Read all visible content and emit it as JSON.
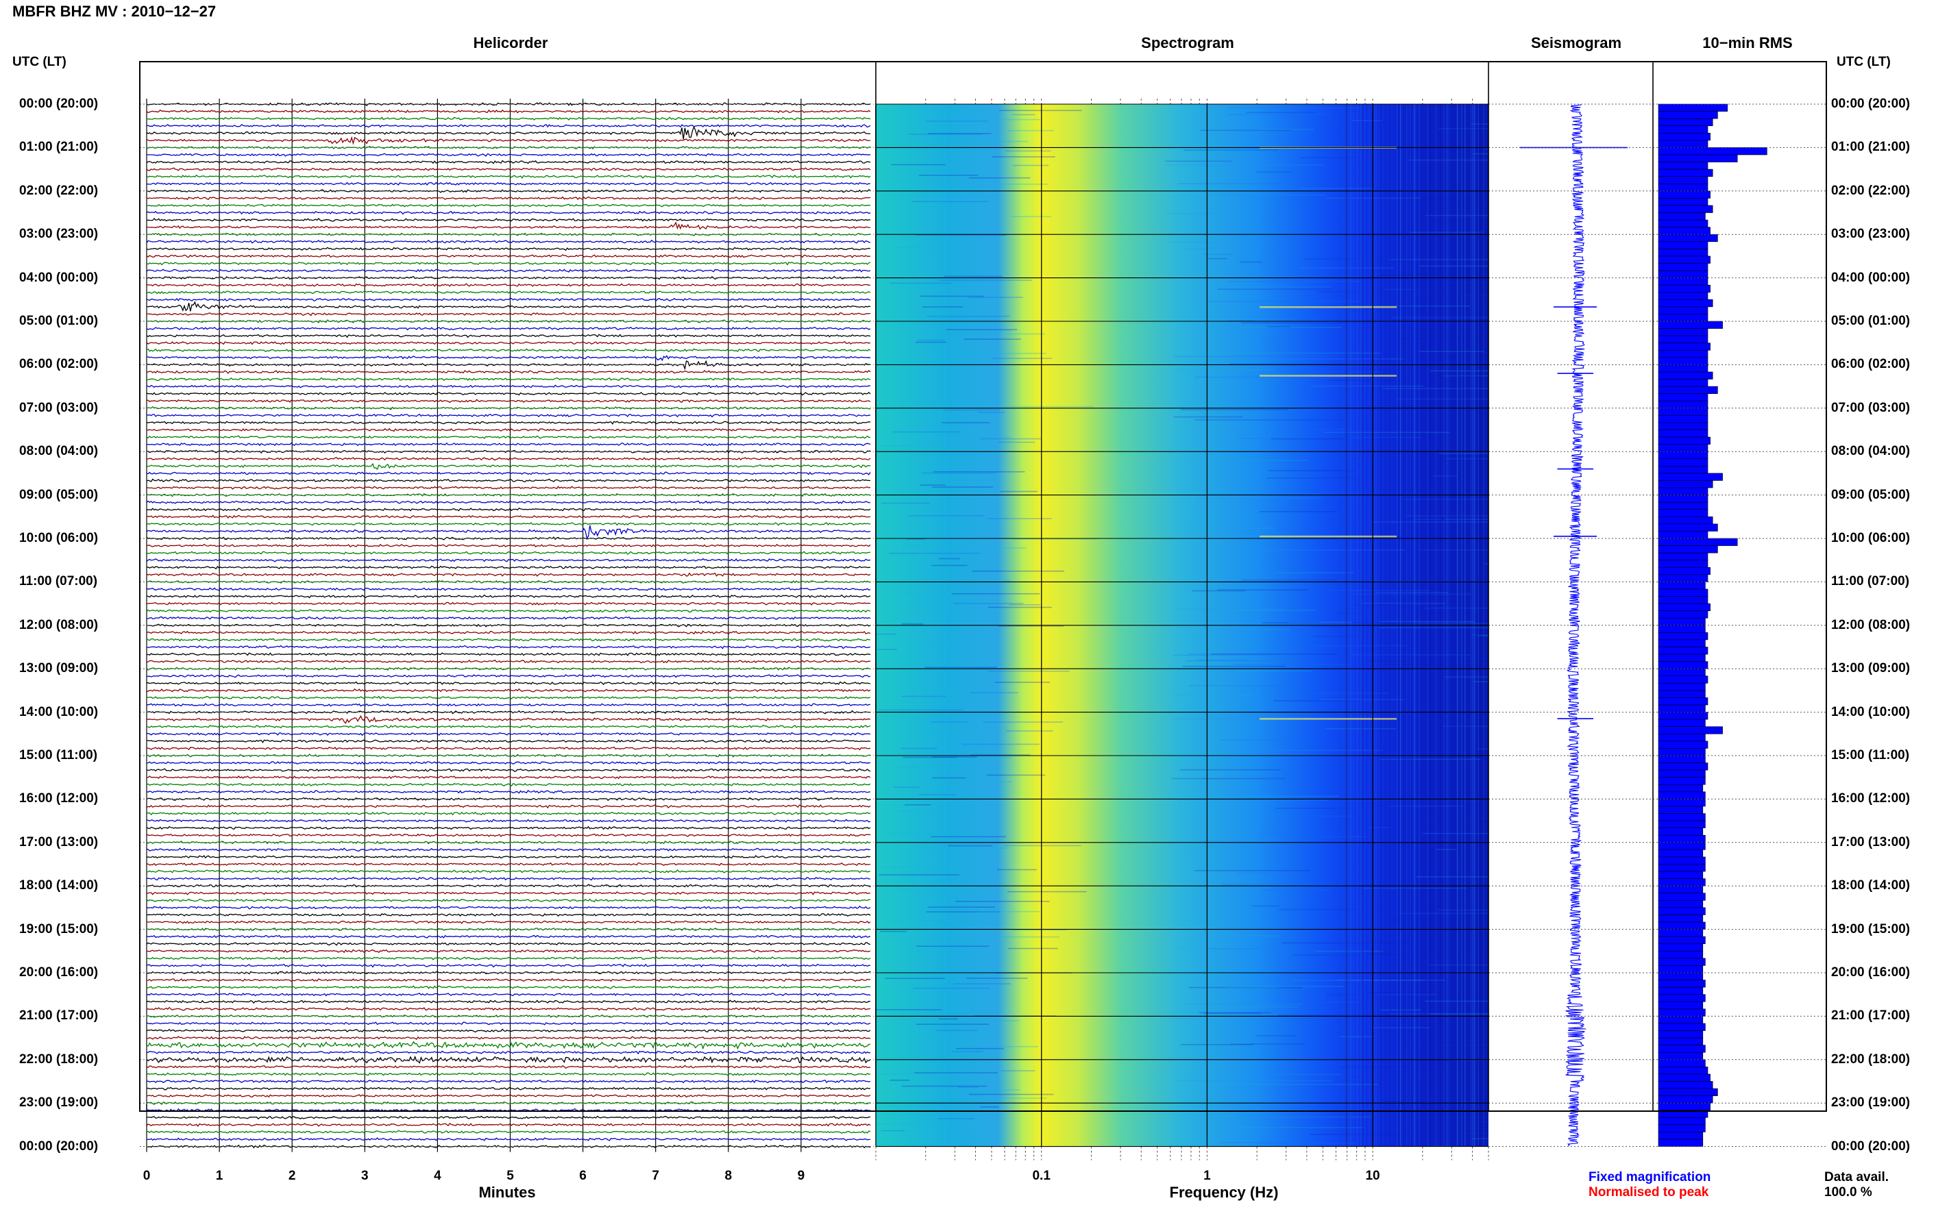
{
  "station_title": "MBFR BHZ MV : 2010−12−27",
  "axis_left_label": "UTC (LT)",
  "axis_right_label": "UTC (LT)",
  "panels": {
    "helicorder": "Helicorder",
    "spectrogram": "Spectrogram",
    "seismogram": "Seismogram",
    "rms": "10−min RMS"
  },
  "x_axes": {
    "helicorder_label": "Minutes",
    "spectrogram_label": "Frequency (Hz)"
  },
  "legend": {
    "fixed": "Fixed magnification",
    "normalised": "Normalised to peak",
    "fixed_color": "#0000ff",
    "normalised_color": "#ff0000"
  },
  "data_availability": {
    "label": "Data avail.",
    "value": "100.0 %"
  },
  "chart_data": [
    {
      "type": "line",
      "title": "Helicorder",
      "xlabel": "Minutes",
      "x_ticks": [
        "0",
        "1",
        "2",
        "3",
        "4",
        "5",
        "6",
        "7",
        "8",
        "9"
      ],
      "xlim": [
        0,
        10
      ],
      "y_ticks": [
        "00:00 (20:00)",
        "01:00 (21:00)",
        "02:00 (22:00)",
        "03:00 (23:00)",
        "04:00 (00:00)",
        "05:00 (01:00)",
        "06:00 (02:00)",
        "07:00 (03:00)",
        "08:00 (04:00)",
        "09:00 (05:00)",
        "10:00 (06:00)",
        "11:00 (07:00)",
        "12:00 (08:00)",
        "13:00 (09:00)",
        "14:00 (10:00)",
        "15:00 (11:00)",
        "16:00 (12:00)",
        "17:00 (13:00)",
        "18:00 (14:00)",
        "19:00 (15:00)",
        "20:00 (16:00)",
        "21:00 (17:00)",
        "22:00 (18:00)",
        "23:00 (19:00)",
        "00:00 (20:00)"
      ],
      "trace_colors": [
        "#000000",
        "#8b0000",
        "#008000",
        "#0000cd"
      ],
      "events": [
        {
          "hour": 0.67,
          "minute": 7.3,
          "duration_min": 1.5,
          "amplitude": 3.0
        },
        {
          "hour": 0.83,
          "minute": 2.5,
          "duration_min": 1.5,
          "amplitude": 1.5
        },
        {
          "hour": 2.83,
          "minute": 7.2,
          "duration_min": 0.8,
          "amplitude": 1.6
        },
        {
          "hour": 4.67,
          "minute": 0.4,
          "duration_min": 1.0,
          "amplitude": 2.5
        },
        {
          "hour": 5.83,
          "minute": 7.0,
          "duration_min": 0.6,
          "amplitude": 1.3
        },
        {
          "hour": 6.0,
          "minute": 7.4,
          "duration_min": 0.8,
          "amplitude": 2.0
        },
        {
          "hour": 8.33,
          "minute": 3.1,
          "duration_min": 0.5,
          "amplitude": 2.0
        },
        {
          "hour": 9.83,
          "minute": 6.0,
          "duration_min": 1.2,
          "amplitude": 2.8
        },
        {
          "hour": 10.83,
          "minute": 7.4,
          "duration_min": 0.8,
          "amplitude": 0.9
        },
        {
          "hour": 14.17,
          "minute": 2.7,
          "duration_min": 2.0,
          "amplitude": 1.4
        },
        {
          "hour": 21.67,
          "minute": 0.0,
          "duration_min": 10.0,
          "amplitude": 0.9
        },
        {
          "hour": 22.0,
          "minute": 0.0,
          "duration_min": 10.0,
          "amplitude": 0.9
        }
      ]
    },
    {
      "type": "heatmap",
      "title": "Spectrogram",
      "xlabel": "Frequency (Hz)",
      "x_scale": "log",
      "xlim": [
        0.01,
        50
      ],
      "x_ticks": [
        "0.1",
        "1",
        "10"
      ],
      "colormap": [
        "#00008b",
        "#0000ff",
        "#1e90ff",
        "#00c8c8",
        "#7fe07f",
        "#ffff00"
      ],
      "peak_band_hz": [
        0.13,
        0.3
      ]
    },
    {
      "type": "line",
      "title": "Seismogram",
      "spikes_hour": [
        1.0,
        4.67,
        6.2,
        8.4,
        9.95,
        14.15
      ]
    },
    {
      "type": "bar",
      "title": "10−min RMS",
      "orientation": "horizontal",
      "bins_per_hour": 6,
      "values": [
        1.4,
        1.2,
        1.1,
        1.0,
        1.05,
        1.0,
        2.2,
        1.6,
        1.0,
        1.1,
        1.0,
        1.0,
        1.05,
        1.0,
        1.1,
        0.95,
        1.0,
        1.05,
        1.2,
        1.0,
        1.0,
        1.05,
        1.0,
        1.0,
        1.0,
        1.05,
        1.0,
        1.1,
        1.0,
        1.0,
        1.3,
        1.0,
        1.0,
        1.05,
        1.0,
        1.0,
        1.0,
        1.1,
        1.0,
        1.2,
        1.0,
        1.0,
        1.0,
        1.0,
        1.0,
        1.0,
        1.05,
        1.0,
        1.0,
        1.0,
        1.0,
        1.3,
        1.1,
        1.0,
        1.0,
        1.0,
        1.0,
        1.1,
        1.2,
        1.0,
        1.6,
        1.2,
        1.0,
        1.0,
        1.05,
        1.0,
        0.95,
        1.0,
        1.0,
        1.05,
        1.0,
        0.95,
        0.95,
        1.0,
        0.95,
        1.0,
        0.95,
        1.0,
        0.95,
        1.0,
        0.95,
        0.95,
        1.0,
        0.95,
        1.0,
        0.95,
        1.3,
        0.95,
        1.0,
        0.95,
        0.95,
        1.0,
        0.95,
        0.95,
        0.9,
        0.95,
        0.95,
        0.9,
        0.95,
        0.95,
        0.9,
        0.95,
        0.95,
        0.9,
        0.95,
        0.95,
        0.9,
        0.95,
        0.9,
        0.95,
        0.9,
        0.95,
        0.9,
        0.95,
        0.9,
        0.95,
        0.9,
        0.9,
        0.95,
        0.9,
        0.9,
        0.95,
        0.9,
        0.95,
        0.9,
        0.95,
        0.9,
        0.95,
        0.9,
        0.9,
        0.95,
        0.9,
        0.95,
        1.0,
        1.05,
        1.1,
        1.2,
        1.1,
        1.05,
        1.0,
        0.95,
        0.95,
        0.9,
        0.9
      ]
    }
  ]
}
